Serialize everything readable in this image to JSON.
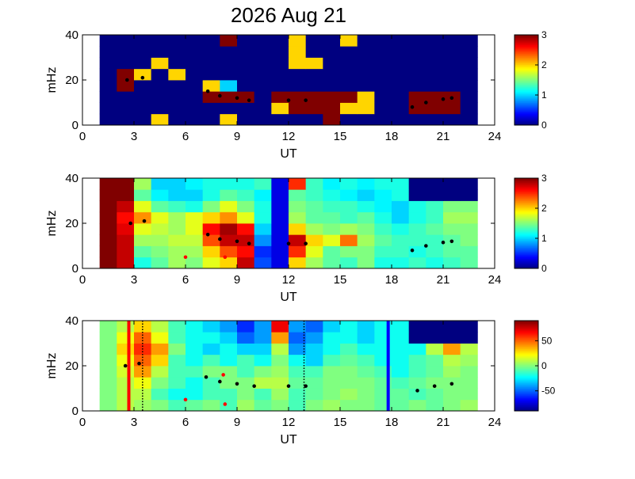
{
  "chart_data": [
    {
      "type": "heatmap",
      "title": "2026 Aug 21",
      "xlabel": "UT",
      "ylabel": "mHz",
      "colormap": "jet",
      "xlim": [
        0,
        24
      ],
      "xticks": [
        0,
        3,
        6,
        9,
        12,
        15,
        18,
        21,
        24
      ],
      "ylim": [
        0,
        40
      ],
      "yticks": [
        0,
        20,
        40
      ],
      "clim": [
        0,
        3
      ],
      "cticks": [
        0,
        1,
        2,
        3
      ],
      "xbins": [
        1,
        2,
        3,
        4,
        5,
        6,
        7,
        8,
        9,
        10,
        11,
        12,
        13,
        14,
        15,
        16,
        17,
        18,
        19,
        20,
        21,
        22,
        23
      ],
      "ybins": [
        0,
        5,
        10,
        15,
        20,
        25,
        30,
        35,
        40
      ],
      "z": [
        [
          0,
          0,
          0,
          2,
          0,
          0,
          0,
          2,
          0,
          0,
          0,
          0,
          0,
          3,
          0,
          0,
          0,
          0,
          0,
          0,
          0,
          0
        ],
        [
          0,
          0,
          0,
          0,
          0,
          0,
          0,
          0,
          0,
          0,
          2,
          3,
          3,
          3,
          2,
          2,
          0,
          0,
          3,
          3,
          3,
          0
        ],
        [
          0,
          0,
          0,
          0,
          0,
          0,
          3,
          3,
          3,
          0,
          3,
          3,
          3,
          3,
          3,
          2,
          0,
          0,
          3,
          3,
          3,
          0
        ],
        [
          0,
          3,
          0,
          0,
          0,
          0,
          2,
          1,
          0,
          0,
          0,
          0,
          0,
          0,
          0,
          0,
          0,
          0,
          0,
          0,
          0,
          0
        ],
        [
          0,
          3,
          2,
          0,
          2,
          0,
          0,
          0,
          0,
          0,
          0,
          0,
          0,
          0,
          0,
          0,
          0,
          0,
          0,
          0,
          0,
          0
        ],
        [
          0,
          0,
          0,
          2,
          0,
          0,
          0,
          0,
          0,
          0,
          0,
          2,
          2,
          0,
          0,
          0,
          0,
          0,
          0,
          0,
          0,
          0
        ],
        [
          0,
          0,
          0,
          0,
          0,
          0,
          0,
          0,
          0,
          0,
          0,
          2,
          0,
          0,
          0,
          0,
          0,
          0,
          0,
          0,
          0,
          0
        ],
        [
          0,
          0,
          0,
          0,
          0,
          0,
          0,
          3,
          0,
          0,
          0,
          2,
          0,
          0,
          2,
          0,
          0,
          0,
          0,
          0,
          0,
          0
        ]
      ],
      "tracks": {
        "color": "#000000",
        "x": [
          2.6,
          3.5,
          7.3,
          8,
          9,
          9.7,
          12,
          13,
          19.2,
          20,
          21,
          21.5
        ],
        "y": [
          20,
          21,
          15,
          13,
          12,
          11,
          11,
          11,
          8,
          10,
          11.5,
          12
        ]
      }
    },
    {
      "type": "heatmap",
      "xlabel": "UT",
      "ylabel": "mHz",
      "colormap": "jet",
      "xlim": [
        0,
        24
      ],
      "xticks": [
        0,
        3,
        6,
        9,
        12,
        15,
        18,
        21,
        24
      ],
      "ylim": [
        0,
        40
      ],
      "yticks": [
        0,
        20,
        40
      ],
      "clim": [
        0,
        3
      ],
      "cticks": [
        0,
        1,
        2,
        3
      ],
      "xbins": [
        1,
        2,
        3,
        4,
        5,
        6,
        7,
        8,
        9,
        10,
        11,
        12,
        13,
        14,
        15,
        16,
        17,
        18,
        19,
        20,
        21,
        22,
        23
      ],
      "ybins": [
        0,
        5,
        10,
        15,
        20,
        25,
        30,
        35,
        40
      ],
      "z": [
        [
          3,
          2.8,
          1.2,
          1.4,
          1.6,
          1.5,
          1.8,
          2,
          2.8,
          0.6,
          0.3,
          2,
          1.6,
          1.4,
          1.3,
          1.5,
          1.2,
          1.2,
          1.3,
          1.2,
          1.3,
          1.4
        ],
        [
          3,
          2.8,
          1.4,
          1.5,
          1.6,
          1.6,
          2,
          2.4,
          2.6,
          0.5,
          0.3,
          2.5,
          1.8,
          1.4,
          1.5,
          1.5,
          1.3,
          1.3,
          1.2,
          1.3,
          1.4,
          1.4
        ],
        [
          3,
          2.8,
          1.6,
          1.6,
          1.7,
          1.7,
          2.4,
          2.8,
          2.8,
          0.8,
          0.3,
          2.8,
          2,
          1.8,
          2.3,
          1.6,
          1.4,
          1.3,
          1.3,
          1.3,
          1.4,
          1.5
        ],
        [
          3,
          2.7,
          1.8,
          1.7,
          1.6,
          1.8,
          2.6,
          2.9,
          2.6,
          1,
          0.3,
          2,
          1.6,
          1.5,
          1.6,
          1.5,
          1.3,
          1.2,
          1.3,
          1.4,
          1.5,
          1.5
        ],
        [
          3,
          2.6,
          2.2,
          1.8,
          1.6,
          1.8,
          2,
          2.2,
          1.8,
          1.2,
          0.3,
          1.6,
          1.4,
          1.4,
          1.3,
          1.4,
          1.2,
          1,
          1.2,
          1.3,
          1.6,
          1.6
        ],
        [
          3,
          2.8,
          1.8,
          1.4,
          1.3,
          1.2,
          1.5,
          1.8,
          1.5,
          1.2,
          0.3,
          1.5,
          1.4,
          1.3,
          1.3,
          1.2,
          1.1,
          1,
          1.2,
          1.3,
          1.5,
          1.5
        ],
        [
          3,
          3,
          1.4,
          1.1,
          1,
          1,
          1.2,
          1.4,
          1.3,
          1.1,
          0.3,
          1.4,
          1.3,
          1.2,
          1.1,
          1,
          1.1,
          1.2,
          0,
          0,
          0,
          0
        ],
        [
          3,
          3,
          1.6,
          1,
          1,
          1.1,
          1.2,
          1.2,
          1.2,
          1.3,
          0.3,
          2.5,
          1.3,
          1.1,
          1.2,
          1.1,
          1.2,
          1.2,
          0,
          0,
          0,
          0
        ]
      ],
      "tracks": {
        "color": "#000000",
        "x": [
          2.8,
          3.6,
          7.3,
          8,
          9,
          9.7,
          12,
          13,
          19.2,
          20,
          21,
          21.5
        ],
        "y": [
          20,
          21,
          15,
          13,
          12,
          11,
          11,
          11,
          8,
          10,
          11.5,
          12
        ]
      },
      "markers": {
        "color": "#ff0000",
        "x": [
          6,
          8.3
        ],
        "y": [
          5,
          5
        ]
      }
    },
    {
      "type": "heatmap",
      "xlabel": "UT",
      "ylabel": "mHz",
      "colormap": "jet",
      "xlim": [
        0,
        24
      ],
      "xticks": [
        0,
        3,
        6,
        9,
        12,
        15,
        18,
        21,
        24
      ],
      "ylim": [
        0,
        40
      ],
      "yticks": [
        0,
        20,
        40
      ],
      "clim": [
        -90,
        90
      ],
      "cticks": [
        -50,
        0,
        50
      ],
      "xbins": [
        1,
        2,
        3,
        4,
        5,
        6,
        7,
        8,
        9,
        10,
        11,
        12,
        13,
        14,
        15,
        16,
        17,
        18,
        19,
        20,
        21,
        22,
        23
      ],
      "ybins": [
        0,
        5,
        10,
        15,
        20,
        25,
        30,
        35,
        40
      ],
      "z": [
        [
          0,
          10,
          5,
          0,
          -10,
          -5,
          0,
          -10,
          5,
          -5,
          0,
          -10,
          0,
          5,
          0,
          0,
          -5,
          -5,
          0,
          -5,
          0,
          5
        ],
        [
          0,
          10,
          10,
          -10,
          -20,
          -20,
          -10,
          -10,
          0,
          -10,
          5,
          -10,
          -5,
          0,
          5,
          0,
          -5,
          -5,
          -10,
          -5,
          0,
          0
        ],
        [
          0,
          10,
          20,
          0,
          -10,
          -20,
          -10,
          0,
          0,
          10,
          10,
          -5,
          -5,
          0,
          0,
          0,
          -5,
          -10,
          -5,
          0,
          0,
          0
        ],
        [
          0,
          15,
          40,
          10,
          -10,
          -10,
          0,
          0,
          -10,
          0,
          5,
          -10,
          -10,
          0,
          0,
          -5,
          -10,
          -20,
          -10,
          -5,
          5,
          0
        ],
        [
          0,
          20,
          50,
          30,
          -10,
          -20,
          -10,
          -20,
          -10,
          -20,
          0,
          -20,
          -30,
          -10,
          -5,
          -10,
          -20,
          -20,
          -10,
          -5,
          10,
          5
        ],
        [
          0,
          30,
          60,
          40,
          0,
          -20,
          -30,
          -20,
          -30,
          -30,
          10,
          -40,
          -30,
          -20,
          -10,
          -20,
          -20,
          -20,
          -20,
          10,
          40,
          10
        ],
        [
          0,
          20,
          50,
          20,
          -10,
          -20,
          -20,
          -30,
          -50,
          -40,
          40,
          -50,
          -40,
          -20,
          -20,
          -30,
          -20,
          -20,
          -90,
          -90,
          -90,
          -90
        ],
        [
          0,
          10,
          30,
          10,
          -10,
          -20,
          -30,
          -40,
          -60,
          -40,
          70,
          -40,
          -50,
          -30,
          -20,
          -30,
          -20,
          -20,
          -90,
          -90,
          -90,
          -90
        ]
      ],
      "tracks": {
        "color": "#000000",
        "x": [
          2.5,
          3.3,
          7.2,
          8,
          9,
          10,
          12,
          13,
          19.5,
          20.5,
          21.5
        ],
        "y": [
          20,
          21,
          15,
          13,
          12,
          11,
          11,
          11,
          9,
          11,
          12
        ]
      },
      "markers": {
        "color": "#ff0000",
        "x": [
          6,
          8.2,
          8.3
        ],
        "y": [
          5,
          16,
          3
        ]
      },
      "vlines": [
        {
          "x": 2.7,
          "color": "#ff0000",
          "style": "solid"
        },
        {
          "x": 3.5,
          "color": "#000000",
          "style": "dotted"
        },
        {
          "x": 12.9,
          "color": "#000000",
          "style": "dotted"
        },
        {
          "x": 17.8,
          "color": "#0000ff",
          "style": "solid"
        }
      ]
    }
  ]
}
